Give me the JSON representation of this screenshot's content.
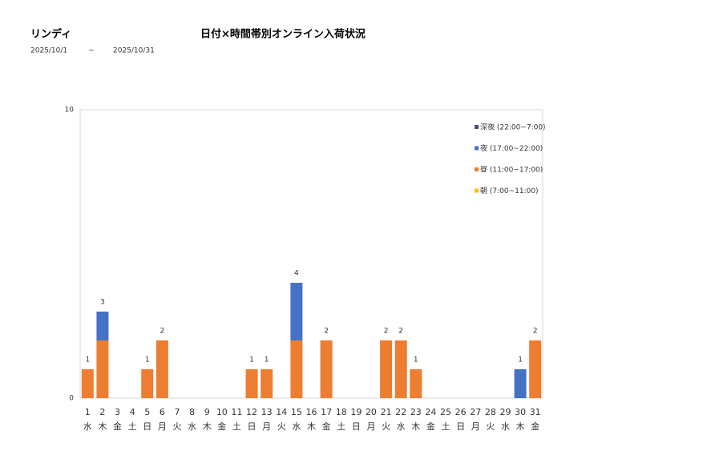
{
  "header": {
    "brand": "リンディ",
    "title": "日付×時間帯別オンライン入荷状況",
    "date_from": "2025/10/1",
    "date_sep": "~",
    "date_to": "2025/10/31"
  },
  "chart_data": {
    "type": "stacked-bar",
    "categories": [
      "1",
      "2",
      "3",
      "4",
      "5",
      "6",
      "7",
      "8",
      "9",
      "10",
      "11",
      "12",
      "13",
      "14",
      "15",
      "16",
      "17",
      "18",
      "19",
      "20",
      "21",
      "22",
      "23",
      "24",
      "25",
      "26",
      "27",
      "28",
      "29",
      "30",
      "31"
    ],
    "weekdays": [
      "水",
      "木",
      "金",
      "土",
      "日",
      "月",
      "火",
      "水",
      "木",
      "金",
      "土",
      "日",
      "月",
      "火",
      "水",
      "木",
      "金",
      "土",
      "日",
      "月",
      "火",
      "水",
      "木",
      "金",
      "土",
      "日",
      "月",
      "火",
      "水",
      "木",
      "金"
    ],
    "series": [
      {
        "name": "朝 (7:00~11:00)",
        "color": "#ffc000",
        "values": [
          0,
          0,
          0,
          0,
          0,
          0,
          0,
          0,
          0,
          0,
          0,
          0,
          0,
          0,
          0,
          0,
          0,
          0,
          0,
          0,
          0,
          0,
          0,
          0,
          0,
          0,
          0,
          0,
          0,
          0,
          0
        ]
      },
      {
        "name": "昼 (11:00~17:00)",
        "color": "#ed7d31",
        "values": [
          1,
          2,
          0,
          0,
          1,
          2,
          0,
          0,
          0,
          0,
          0,
          1,
          1,
          0,
          2,
          0,
          2,
          0,
          0,
          0,
          2,
          2,
          1,
          0,
          0,
          0,
          0,
          0,
          0,
          0,
          2
        ]
      },
      {
        "name": "夜 (17:00~22:00)",
        "color": "#4472c4",
        "values": [
          0,
          1,
          0,
          0,
          0,
          0,
          0,
          0,
          0,
          0,
          0,
          0,
          0,
          0,
          2,
          0,
          0,
          0,
          0,
          0,
          0,
          0,
          0,
          0,
          0,
          0,
          0,
          0,
          0,
          1,
          0
        ]
      },
      {
        "name": "深夜 (22:00~7:00)",
        "color": "#44546a",
        "values": [
          0,
          0,
          0,
          0,
          0,
          0,
          0,
          0,
          0,
          0,
          0,
          0,
          0,
          0,
          0,
          0,
          0,
          0,
          0,
          0,
          0,
          0,
          0,
          0,
          0,
          0,
          0,
          0,
          0,
          0,
          0
        ]
      }
    ],
    "totals": [
      1,
      3,
      null,
      null,
      1,
      2,
      null,
      null,
      null,
      null,
      null,
      1,
      1,
      null,
      4,
      null,
      2,
      null,
      null,
      null,
      2,
      2,
      1,
      null,
      null,
      null,
      null,
      null,
      null,
      1,
      2
    ],
    "ylim": [
      0,
      10
    ],
    "yticks": [
      0,
      10
    ]
  }
}
